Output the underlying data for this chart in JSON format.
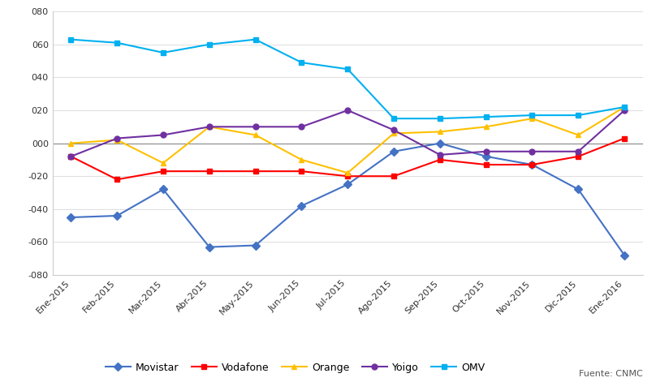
{
  "months": [
    "Ene-2015",
    "Feb-2015",
    "Mar-2015",
    "Abr-2015",
    "May-2015",
    "Jun-2015",
    "Jul-2015",
    "Ago-2015",
    "Sep-2015",
    "Oct-2015",
    "Nov-2015",
    "Dic-2015",
    "Ene-2016"
  ],
  "series": {
    "Movistar": {
      "values": [
        -45,
        -44,
        -28,
        -63,
        -62,
        -38,
        -25,
        -5,
        0,
        -8,
        -13,
        -28,
        -68
      ],
      "color": "#4472C4",
      "marker": "D",
      "linewidth": 1.5,
      "markersize": 5
    },
    "Vodafone": {
      "values": [
        -8,
        -22,
        -17,
        -17,
        -17,
        -17,
        -20,
        -20,
        -10,
        -13,
        -13,
        -8,
        3
      ],
      "color": "#FF0000",
      "marker": "s",
      "linewidth": 1.5,
      "markersize": 5
    },
    "Orange": {
      "values": [
        0,
        2,
        -12,
        10,
        5,
        -10,
        -18,
        6,
        7,
        10,
        15,
        5,
        22
      ],
      "color": "#FFC000",
      "marker": "^",
      "linewidth": 1.5,
      "markersize": 5
    },
    "Yoigo": {
      "values": [
        -8,
        3,
        5,
        10,
        10,
        10,
        20,
        8,
        -7,
        -5,
        -5,
        -5,
        20
      ],
      "color": "#7030A0",
      "marker": "o",
      "linewidth": 1.5,
      "markersize": 5
    },
    "OMV": {
      "values": [
        63,
        61,
        55,
        60,
        63,
        49,
        45,
        15,
        15,
        16,
        17,
        17,
        22
      ],
      "color": "#00B0F0",
      "marker": "s",
      "linewidth": 1.5,
      "markersize": 5
    }
  },
  "ylim": [
    -80,
    80
  ],
  "yticks": [
    -80,
    -60,
    -40,
    -20,
    0,
    20,
    40,
    60,
    80
  ],
  "ytick_labels": [
    "-080",
    "-060",
    "-040",
    "-020",
    "000",
    "020",
    "040",
    "060",
    "080"
  ],
  "source": "Fuente: CNMC",
  "background_color": "#FFFFFF",
  "grid_color": "#DDDDDD",
  "zero_line_color": "#888888",
  "spine_color": "#CCCCCC"
}
